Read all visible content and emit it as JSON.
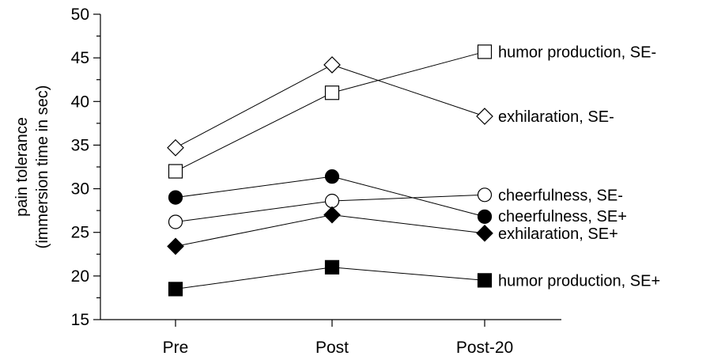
{
  "chart_data": {
    "type": "line",
    "title": "",
    "xlabel": "",
    "ylabel": [
      "pain tolerance",
      "(immersion time in sec)"
    ],
    "categories": [
      "Pre",
      "Post",
      "Post-20"
    ],
    "ylim": [
      15,
      50
    ],
    "yticks": [
      15,
      20,
      25,
      30,
      35,
      40,
      45,
      50
    ],
    "grid": false,
    "legend": "labels at line ends (right)",
    "series": [
      {
        "name": "humor production, SE-",
        "marker": "square-open",
        "values": [
          32,
          41,
          45.7
        ]
      },
      {
        "name": "exhilaration, SE-",
        "marker": "diamond-open",
        "values": [
          34.7,
          44.2,
          38.3
        ]
      },
      {
        "name": "cheerfulness, SE-",
        "marker": "circle-open",
        "values": [
          26.2,
          28.6,
          29.3
        ]
      },
      {
        "name": "cheerfulness, SE+",
        "marker": "circle-filled",
        "values": [
          29,
          31.4,
          26.8
        ]
      },
      {
        "name": "exhilaration, SE+",
        "marker": "diamond-filled",
        "values": [
          23.4,
          27,
          24.9
        ]
      },
      {
        "name": "humor production, SE+",
        "marker": "square-filled",
        "values": [
          18.5,
          21,
          19.5
        ]
      }
    ]
  }
}
